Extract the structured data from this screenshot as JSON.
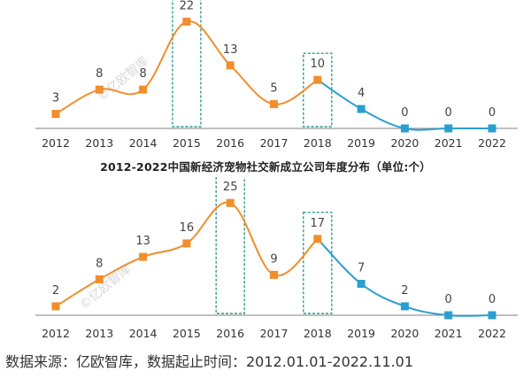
{
  "colors": {
    "orange": "#F28E2B",
    "blue": "#2A9FCF",
    "highlight_box": "#2E9C8F",
    "axis": "#9a9a9a",
    "label": "#444444"
  },
  "chart_data": [
    {
      "type": "line",
      "categories": [
        "2012",
        "2013",
        "2014",
        "2015",
        "2016",
        "2017",
        "2018",
        "2019",
        "2020",
        "2021",
        "2022"
      ],
      "values": [
        3,
        8,
        8,
        22,
        13,
        5,
        10,
        4,
        0,
        0,
        0
      ],
      "segment_colors": {
        "orange_until_index": 6,
        "blue_from_index": 6
      },
      "highlighted_categories": [
        "2015",
        "2018"
      ],
      "ylim": [
        0,
        25
      ],
      "title": "",
      "xlabel": "",
      "ylabel": ""
    },
    {
      "type": "line",
      "categories": [
        "2012",
        "2013",
        "2014",
        "2015",
        "2016",
        "2017",
        "2018",
        "2019",
        "2020",
        "2021",
        "2022"
      ],
      "values": [
        2,
        8,
        13,
        16,
        25,
        9,
        17,
        7,
        2,
        0,
        0
      ],
      "segment_colors": {
        "orange_until_index": 6,
        "blue_from_index": 6
      },
      "highlighted_categories": [
        "2016",
        "2018"
      ],
      "ylim": [
        0,
        28
      ],
      "title": "",
      "xlabel": "",
      "ylabel": ""
    }
  ],
  "texts": {
    "middle_title": "2012-2022中国新经济宠物社交新成立公司年度分布（单位:个）",
    "source": "数据来源：亿欧智库，数据起止时间：2012.01.01-2022.11.01",
    "watermark": "©亿欧智库"
  }
}
